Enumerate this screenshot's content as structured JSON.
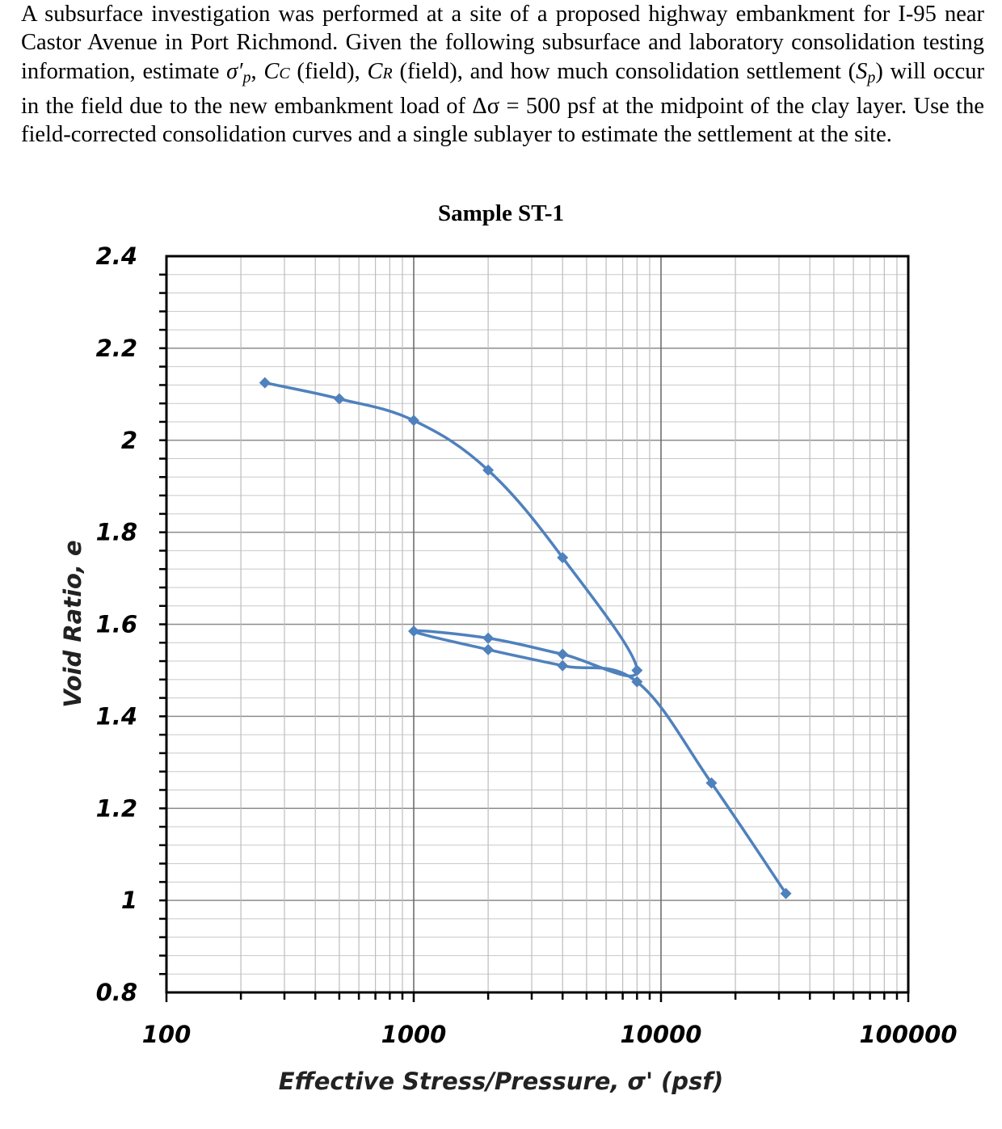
{
  "problem": {
    "part1": "A subsurface investigation was performed at a site of a proposed highway embankment for I-95 near Castor Avenue in Port Richmond. Given the following subsurface and laboratory consolidation testing information, estimate ",
    "sigma_p_prime": "σ′",
    "p_sub": "p",
    "sep1": ", ",
    "c_letter": "C",
    "c_sub": "C",
    "field1": " (field), ",
    "r_letter": "C",
    "r_sub": "R",
    "part2": " (field), and how much consolidation settlement (",
    "s_letter": "S",
    "s_sub": "p",
    "part3": ") will occur in the field due to the new embankment load of Δσ = 500 psf at the midpoint of the clay layer. Use the field-corrected consolidation curves and a single sublayer to estimate the settlement at the site."
  },
  "chart_data": {
    "type": "line",
    "title": "Sample ST-1",
    "xlabel": "Effective Stress/Pressure, σ' (psf)",
    "ylabel": "Void Ratio, e",
    "xscale": "log",
    "xlim": [
      100,
      100000
    ],
    "ylim": [
      0.8,
      2.4
    ],
    "xticks": [
      "100",
      "1000",
      "10000",
      "100000"
    ],
    "yticks": [
      "2.4",
      "2.2",
      "2",
      "1.8",
      "1.6",
      "1.4",
      "1.2",
      "1",
      "0.8"
    ],
    "grid": true,
    "line_color": "#4f81bd",
    "x": [
      250,
      500,
      1000,
      2000,
      4000,
      8000,
      4000,
      2000,
      1000,
      2000,
      4000,
      8000,
      16000,
      32000
    ],
    "y": [
      2.125,
      2.09,
      2.043,
      1.935,
      1.745,
      1.5,
      1.535,
      1.57,
      1.585,
      1.545,
      1.51,
      1.475,
      1.255,
      1.015
    ]
  }
}
